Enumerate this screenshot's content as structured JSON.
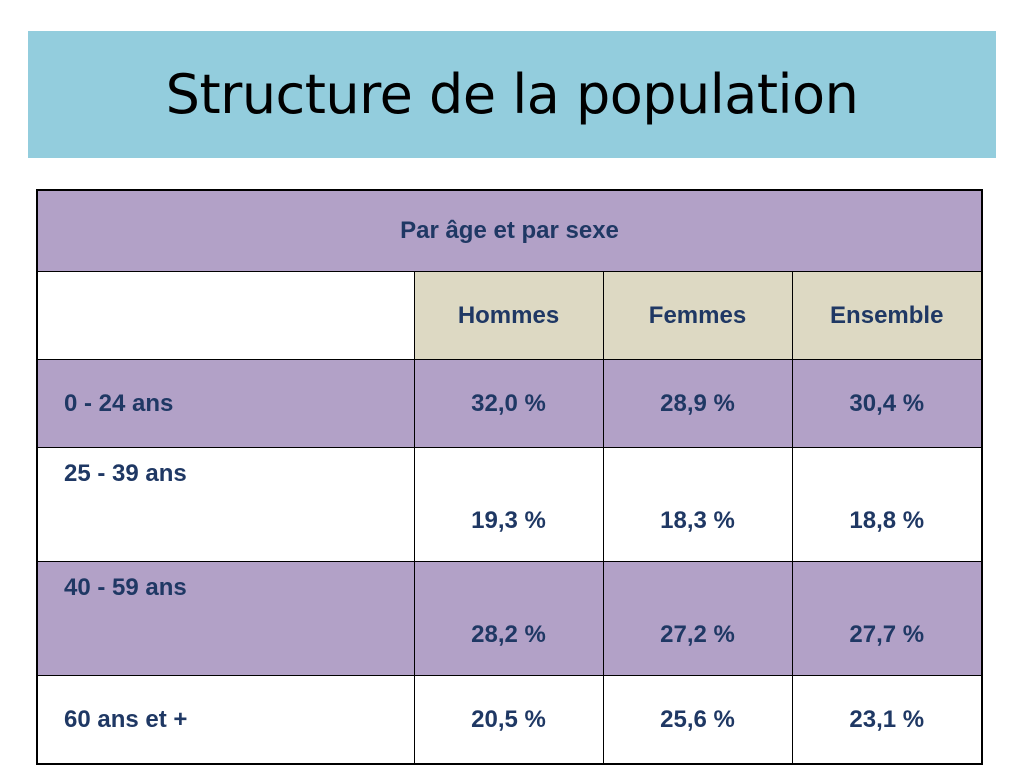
{
  "slide": {
    "title": "Structure de la population"
  },
  "table": {
    "caption": "Par âge et par sexe",
    "columns": [
      "Hommes",
      "Femmes",
      "Ensemble"
    ],
    "rows": [
      {
        "label": "0 - 24 ans",
        "values": [
          "32,0 %",
          "28,9 %",
          "30,4 %"
        ]
      },
      {
        "label": "25 - 39 ans",
        "values": [
          "19,3 %",
          "18,3 %",
          "18,8 %"
        ]
      },
      {
        "label": "40 - 59 ans",
        "values": [
          "28,2 %",
          "27,2 %",
          "27,7 %"
        ]
      },
      {
        "label": "60 ans et +",
        "values": [
          "20,5 %",
          "25,6 %",
          "23,1 %"
        ]
      }
    ]
  },
  "colors": {
    "title_background": "#93cddd",
    "caption_background": "#b2a1c7",
    "header_background": "#ddd9c3",
    "shaded_row_background": "#b2a1c7",
    "text": "#1f3864"
  }
}
